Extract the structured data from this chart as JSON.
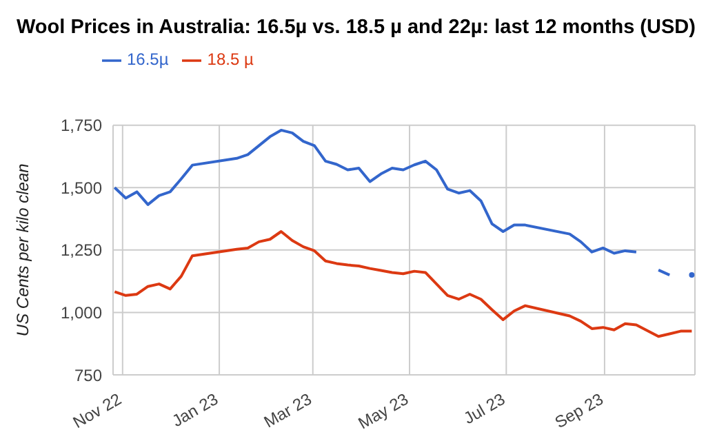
{
  "chart_data": {
    "type": "line",
    "title": "Wool Prices in Australia: 16.5µ vs. 18.5 µ and 22µ: last 12 months (USD)",
    "ylabel": "US Cents per kilo clean",
    "xlim": [
      "2022-10-26",
      "2023-10-28"
    ],
    "xticks": [
      {
        "value": "2022-11-01",
        "label": "Nov 22"
      },
      {
        "value": "2023-01-01",
        "label": "Jan 23"
      },
      {
        "value": "2023-03-01",
        "label": "Mar 23"
      },
      {
        "value": "2023-05-01",
        "label": "May 23"
      },
      {
        "value": "2023-07-01",
        "label": "Jul 23"
      },
      {
        "value": "2023-09-01",
        "label": "Sep 23"
      }
    ],
    "ylim": [
      750,
      1750
    ],
    "yticks": [
      {
        "value": 750,
        "label": "750"
      },
      {
        "value": 1000,
        "label": "1,000"
      },
      {
        "value": 1250,
        "label": "1,250"
      },
      {
        "value": 1500,
        "label": "1,500"
      },
      {
        "value": 1750,
        "label": "1,750"
      }
    ],
    "grid": true,
    "legend": "top left",
    "marker": "none",
    "line_style": "solid",
    "series": [
      {
        "name": "16.5µ",
        "color": "#3366cc",
        "x": [
          "2022-10-27",
          "2022-11-03",
          "2022-11-10",
          "2022-11-17",
          "2022-11-24",
          "2022-12-01",
          "2022-12-08",
          "2022-12-15",
          "2023-01-12",
          "2023-01-19",
          "2023-01-26",
          "2023-02-02",
          "2023-02-09",
          "2023-02-16",
          "2023-02-23",
          "2023-03-02",
          "2023-03-09",
          "2023-03-16",
          "2023-03-23",
          "2023-03-30",
          "2023-04-06",
          "2023-04-13",
          "2023-04-20",
          "2023-04-27",
          "2023-05-04",
          "2023-05-11",
          "2023-05-18",
          "2023-05-25",
          "2023-06-01",
          "2023-06-08",
          "2023-06-15",
          "2023-06-22",
          "2023-06-29",
          "2023-07-06",
          "2023-07-13",
          "2023-08-10",
          "2023-08-17",
          "2023-08-24",
          "2023-08-31",
          "2023-09-07",
          "2023-09-14",
          "2023-09-21",
          "2023-09-28",
          "2023-10-05",
          "2023-10-12",
          "2023-10-19",
          "2023-10-26"
        ],
        "values": [
          1500,
          1458,
          1483,
          1432,
          1468,
          1483,
          1535,
          1590,
          1617,
          1632,
          1668,
          1704,
          1730,
          1719,
          1685,
          1668,
          1606,
          1593,
          1571,
          1578,
          1524,
          1555,
          1578,
          1571,
          1591,
          1606,
          1571,
          1494,
          1478,
          1488,
          1447,
          1355,
          1324,
          1350,
          1350,
          1314,
          1283,
          1242,
          1258,
          1237,
          1247,
          1242,
          null,
          1170,
          1150,
          null,
          1150
        ]
      },
      {
        "name": "18.5 µ",
        "color": "#dc3912",
        "x": [
          "2022-10-27",
          "2022-11-03",
          "2022-11-10",
          "2022-11-17",
          "2022-11-24",
          "2022-12-01",
          "2022-12-08",
          "2022-12-15",
          "2023-01-12",
          "2023-01-19",
          "2023-01-26",
          "2023-02-02",
          "2023-02-09",
          "2023-02-16",
          "2023-02-23",
          "2023-03-02",
          "2023-03-09",
          "2023-03-16",
          "2023-03-23",
          "2023-03-30",
          "2023-04-06",
          "2023-04-13",
          "2023-04-20",
          "2023-04-27",
          "2023-05-04",
          "2023-05-11",
          "2023-05-18",
          "2023-05-25",
          "2023-06-01",
          "2023-06-08",
          "2023-06-15",
          "2023-06-22",
          "2023-06-29",
          "2023-07-06",
          "2023-07-13",
          "2023-08-10",
          "2023-08-17",
          "2023-08-24",
          "2023-08-31",
          "2023-09-07",
          "2023-09-14",
          "2023-09-21",
          "2023-10-05",
          "2023-10-12",
          "2023-10-19",
          "2023-10-26"
        ],
        "values": [
          1083,
          1068,
          1073,
          1104,
          1114,
          1094,
          1145,
          1227,
          1253,
          1258,
          1283,
          1293,
          1324,
          1288,
          1263,
          1247,
          1206,
          1196,
          1190,
          1186,
          1176,
          1168,
          1160,
          1155,
          1165,
          1160,
          1114,
          1068,
          1053,
          1073,
          1053,
          1011,
          971,
          1006,
          1027,
          986,
          965,
          935,
          940,
          930,
          955,
          950,
          904,
          914,
          925,
          925
        ]
      }
    ]
  }
}
